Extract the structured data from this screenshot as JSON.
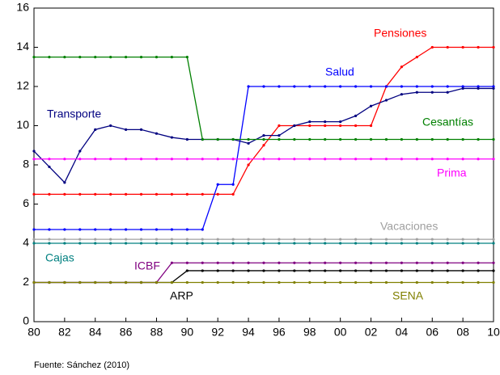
{
  "chart_data": {
    "type": "line",
    "x": [
      1980,
      1981,
      1982,
      1983,
      1984,
      1985,
      1986,
      1987,
      1988,
      1989,
      1990,
      1991,
      1992,
      1993,
      1994,
      1995,
      1996,
      1997,
      1998,
      1999,
      2000,
      2001,
      2002,
      2003,
      2004,
      2005,
      2006,
      2007,
      2008,
      2009,
      2010
    ],
    "xlim": [
      1980,
      2010
    ],
    "xticks": [
      {
        "value": 1980,
        "label": "80"
      },
      {
        "value": 1982,
        "label": "82"
      },
      {
        "value": 1984,
        "label": "84"
      },
      {
        "value": 1986,
        "label": "86"
      },
      {
        "value": 1988,
        "label": "88"
      },
      {
        "value": 1990,
        "label": "90"
      },
      {
        "value": 1992,
        "label": "92"
      },
      {
        "value": 1994,
        "label": "94"
      },
      {
        "value": 1996,
        "label": "96"
      },
      {
        "value": 1998,
        "label": "98"
      },
      {
        "value": 2000,
        "label": "00"
      },
      {
        "value": 2002,
        "label": "02"
      },
      {
        "value": 2004,
        "label": "04"
      },
      {
        "value": 2006,
        "label": "06"
      },
      {
        "value": 2008,
        "label": "08"
      },
      {
        "value": 2010,
        "label": "10"
      }
    ],
    "ylim": [
      0,
      16
    ],
    "yticks": [
      0,
      2,
      4,
      6,
      8,
      10,
      12,
      14,
      16
    ],
    "grid": false,
    "source": "Fuente: Sánchez (2010)",
    "series": [
      {
        "name": "Pensiones",
        "color": "#ff0000",
        "values": [
          6.5,
          6.5,
          6.5,
          6.5,
          6.5,
          6.5,
          6.5,
          6.5,
          6.5,
          6.5,
          6.5,
          6.5,
          6.5,
          6.5,
          8,
          9,
          10,
          10,
          10,
          10,
          10,
          10,
          10,
          12,
          13,
          13.5,
          14,
          14,
          14,
          14,
          14
        ]
      },
      {
        "name": "Salud",
        "color": "#0000ff",
        "values": [
          4.7,
          4.7,
          4.7,
          4.7,
          4.7,
          4.7,
          4.7,
          4.7,
          4.7,
          4.7,
          4.7,
          4.7,
          7,
          7,
          12,
          12,
          12,
          12,
          12,
          12,
          12,
          12,
          12,
          12,
          12,
          12,
          12,
          12,
          12,
          12,
          12
        ]
      },
      {
        "name": "Transporte",
        "color": "#000080",
        "values": [
          8.7,
          7.9,
          7.1,
          8.7,
          9.8,
          10,
          9.8,
          9.8,
          9.6,
          9.4,
          9.3,
          9.3,
          9.3,
          9.3,
          9.1,
          9.5,
          9.5,
          10,
          10.2,
          10.2,
          10.2,
          10.5,
          11,
          11.3,
          11.6,
          11.7,
          11.7,
          11.7,
          11.9,
          11.9,
          11.9
        ]
      },
      {
        "name": "Cesantías",
        "color": "#008000",
        "values": [
          13.5,
          13.5,
          13.5,
          13.5,
          13.5,
          13.5,
          13.5,
          13.5,
          13.5,
          13.5,
          13.5,
          9.3,
          9.3,
          9.3,
          9.3,
          9.3,
          9.3,
          9.3,
          9.3,
          9.3,
          9.3,
          9.3,
          9.3,
          9.3,
          9.3,
          9.3,
          9.3,
          9.3,
          9.3,
          9.3,
          9.3
        ]
      },
      {
        "name": "Prima",
        "color": "#ff00ff",
        "values": [
          8.3,
          8.3,
          8.3,
          8.3,
          8.3,
          8.3,
          8.3,
          8.3,
          8.3,
          8.3,
          8.3,
          8.3,
          8.3,
          8.3,
          8.3,
          8.3,
          8.3,
          8.3,
          8.3,
          8.3,
          8.3,
          8.3,
          8.3,
          8.3,
          8.3,
          8.3,
          8.3,
          8.3,
          8.3,
          8.3,
          8.3
        ]
      },
      {
        "name": "Vacaciones",
        "color": "#a0a0a0",
        "values": [
          4.2,
          4.2,
          4.2,
          4.2,
          4.2,
          4.2,
          4.2,
          4.2,
          4.2,
          4.2,
          4.2,
          4.2,
          4.2,
          4.2,
          4.2,
          4.2,
          4.2,
          4.2,
          4.2,
          4.2,
          4.2,
          4.2,
          4.2,
          4.2,
          4.2,
          4.2,
          4.2,
          4.2,
          4.2,
          4.2,
          4.2
        ]
      },
      {
        "name": "Cajas",
        "color": "#008080",
        "values": [
          4,
          4,
          4,
          4,
          4,
          4,
          4,
          4,
          4,
          4,
          4,
          4,
          4,
          4,
          4,
          4,
          4,
          4,
          4,
          4,
          4,
          4,
          4,
          4,
          4,
          4,
          4,
          4,
          4,
          4,
          4
        ]
      },
      {
        "name": "ICBF",
        "color": "#800080",
        "values": [
          2,
          2,
          2,
          2,
          2,
          2,
          2,
          2,
          2,
          3,
          3,
          3,
          3,
          3,
          3,
          3,
          3,
          3,
          3,
          3,
          3,
          3,
          3,
          3,
          3,
          3,
          3,
          3,
          3,
          3,
          3
        ]
      },
      {
        "name": "ARP",
        "color": "#000000",
        "values": [
          2,
          2,
          2,
          2,
          2,
          2,
          2,
          2,
          2,
          2,
          2.6,
          2.6,
          2.6,
          2.6,
          2.6,
          2.6,
          2.6,
          2.6,
          2.6,
          2.6,
          2.6,
          2.6,
          2.6,
          2.6,
          2.6,
          2.6,
          2.6,
          2.6,
          2.6,
          2.6,
          2.6
        ]
      },
      {
        "name": "SENA",
        "color": "#808000",
        "values": [
          2,
          2,
          2,
          2,
          2,
          2,
          2,
          2,
          2,
          2,
          2,
          2,
          2,
          2,
          2,
          2,
          2,
          2,
          2,
          2,
          2,
          2,
          2,
          2,
          2,
          2,
          2,
          2,
          2,
          2,
          2
        ]
      }
    ]
  }
}
